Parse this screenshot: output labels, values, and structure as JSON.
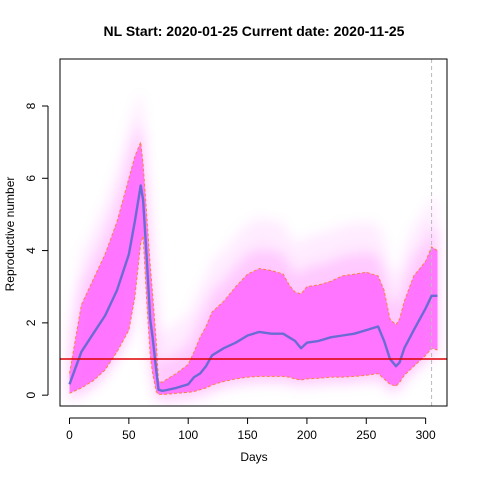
{
  "chart_data": {
    "type": "line",
    "title": "NL Start:  2020-01-25   Current date:  2020-11-25",
    "xlabel": "Days",
    "ylabel": "Reproductive number",
    "xlim": [
      -8,
      318
    ],
    "ylim": [
      -0.3,
      9.3
    ],
    "xticks": [
      0,
      50,
      100,
      150,
      200,
      250,
      300
    ],
    "yticks": [
      0,
      2,
      4,
      6,
      8
    ],
    "grid": false,
    "reference_line": {
      "y": 1,
      "color": "#dd0000"
    },
    "current_day_marker": {
      "x": 305
    },
    "colors": {
      "median": "#6b6bd6",
      "band": "#ff66ff",
      "band_edge": "#ff8040",
      "ref": "#dd0000"
    },
    "x": [
      0,
      10,
      20,
      30,
      40,
      50,
      55,
      60,
      62,
      65,
      68,
      70,
      73,
      75,
      78,
      80,
      90,
      100,
      105,
      110,
      115,
      120,
      130,
      140,
      150,
      160,
      170,
      180,
      185,
      190,
      195,
      200,
      210,
      220,
      230,
      240,
      250,
      260,
      265,
      270,
      275,
      278,
      282,
      290,
      300,
      305,
      310
    ],
    "series": [
      {
        "name": "median",
        "values": [
          0.3,
          1.2,
          1.7,
          2.2,
          2.9,
          3.9,
          4.8,
          5.8,
          5.4,
          3.8,
          2.1,
          1.6,
          0.7,
          0.15,
          0.12,
          0.13,
          0.2,
          0.3,
          0.5,
          0.6,
          0.8,
          1.1,
          1.3,
          1.45,
          1.65,
          1.75,
          1.7,
          1.7,
          1.6,
          1.5,
          1.3,
          1.45,
          1.5,
          1.6,
          1.65,
          1.7,
          1.8,
          1.9,
          1.5,
          1.0,
          0.8,
          0.9,
          1.3,
          1.8,
          2.4,
          2.75,
          2.75
        ]
      },
      {
        "name": "upper",
        "values": [
          0.6,
          2.5,
          3.2,
          3.9,
          4.8,
          6.0,
          6.6,
          7.0,
          6.4,
          5.0,
          3.6,
          2.8,
          1.5,
          0.4,
          0.35,
          0.4,
          0.6,
          0.85,
          1.2,
          1.6,
          1.9,
          2.3,
          2.6,
          3.0,
          3.35,
          3.5,
          3.45,
          3.35,
          3.05,
          2.85,
          2.8,
          3.0,
          3.05,
          3.15,
          3.3,
          3.35,
          3.4,
          3.3,
          2.9,
          2.1,
          1.95,
          2.1,
          2.6,
          3.3,
          3.7,
          4.1,
          4.0
        ]
      },
      {
        "name": "lower",
        "values": [
          0.05,
          0.2,
          0.4,
          0.7,
          1.2,
          1.8,
          2.7,
          4.2,
          4.4,
          2.6,
          1.1,
          0.6,
          0.1,
          0.02,
          0.02,
          0.02,
          0.05,
          0.08,
          0.1,
          0.15,
          0.2,
          0.28,
          0.38,
          0.45,
          0.5,
          0.52,
          0.52,
          0.52,
          0.5,
          0.45,
          0.42,
          0.45,
          0.47,
          0.5,
          0.5,
          0.52,
          0.55,
          0.6,
          0.45,
          0.3,
          0.25,
          0.35,
          0.55,
          0.8,
          1.1,
          1.3,
          1.25
        ]
      }
    ]
  }
}
